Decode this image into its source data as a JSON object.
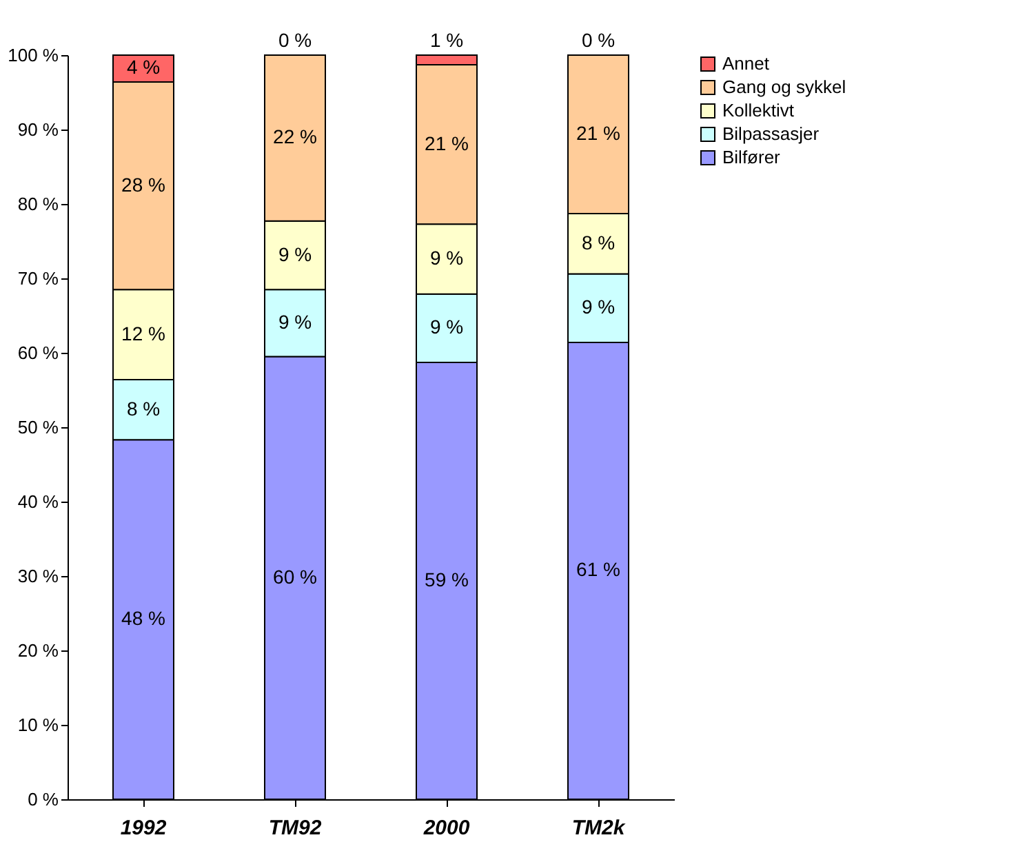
{
  "chart_data": {
    "type": "bar",
    "stacked": true,
    "categories": [
      "1992",
      "TM92",
      "2000",
      "TM2k"
    ],
    "series": [
      {
        "name": "Bilfører",
        "color": "#9999ff",
        "values": [
          48.3,
          59.5,
          58.7,
          61.4
        ],
        "value_labels": [
          "48 %",
          "60 %",
          "59 %",
          "61 %"
        ]
      },
      {
        "name": "Bilpassasjer",
        "color": "#ccffff",
        "values": [
          8.1,
          9.0,
          9.2,
          9.2
        ],
        "value_labels": [
          "8 %",
          "9 %",
          "9 %",
          "9 %"
        ]
      },
      {
        "name": "Kollektivt",
        "color": "#ffffcc",
        "values": [
          12.1,
          9.2,
          9.4,
          8.1
        ],
        "value_labels": [
          "12 %",
          "9 %",
          "9 %",
          "8 %"
        ]
      },
      {
        "name": "Gang og sykkel",
        "color": "#ffcc99",
        "values": [
          27.9,
          22.3,
          21.4,
          21.3
        ],
        "value_labels": [
          "28 %",
          "22 %",
          "21 %",
          "21 %"
        ]
      },
      {
        "name": "Annet",
        "color": "#ff6666",
        "values": [
          3.6,
          0,
          1.3,
          0
        ],
        "value_labels": [
          "4 %",
          "0 %",
          "1 %",
          "0 %"
        ]
      }
    ],
    "ylim": [
      0,
      100
    ],
    "yticks": [
      {
        "value": 0,
        "label": "0 %"
      },
      {
        "value": 10,
        "label": "10 %"
      },
      {
        "value": 20,
        "label": "20 %"
      },
      {
        "value": 30,
        "label": "30 %"
      },
      {
        "value": 40,
        "label": "40 %"
      },
      {
        "value": 50,
        "label": "50 %"
      },
      {
        "value": 60,
        "label": "60 %"
      },
      {
        "value": 70,
        "label": "70 %"
      },
      {
        "value": 80,
        "label": "80 %"
      },
      {
        "value": 90,
        "label": "90 %"
      },
      {
        "value": 100,
        "label": "100 %"
      }
    ],
    "grid": false,
    "legend": "right"
  }
}
